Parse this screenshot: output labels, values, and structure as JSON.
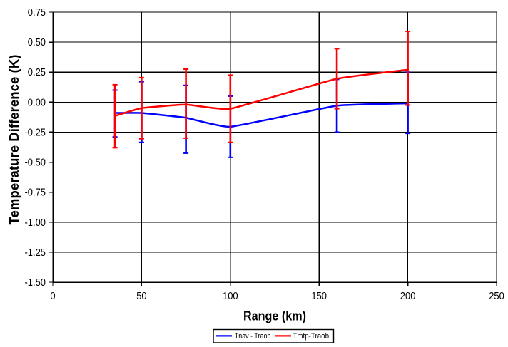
{
  "chart_data": {
    "type": "line",
    "title": "",
    "xlabel": "Range (km)",
    "ylabel": "Temperature Difference (K)",
    "xlim": [
      0,
      250
    ],
    "ylim": [
      -1.5,
      0.75
    ],
    "x_tick_labels": [
      "0",
      "50",
      "100",
      "150",
      "200",
      "250"
    ],
    "x_tick_values": [
      0,
      50,
      100,
      150,
      200,
      250
    ],
    "y_tick_labels": [
      "0.75",
      "0.50",
      "0.25",
      "0.00",
      "-0.25",
      "-0.50",
      "-0.75",
      "-1.00",
      "-1.25",
      "-1.50"
    ],
    "y_tick_values": [
      0.75,
      0.5,
      0.25,
      0.0,
      -0.25,
      -0.5,
      -0.75,
      -1.0,
      -1.25,
      -1.5
    ],
    "grid": true,
    "grid_color": "#000000",
    "axis_color": "#000000",
    "background_color": "#ffffff",
    "legend_position": "bottom",
    "x": [
      35,
      50,
      75,
      100,
      160,
      200
    ],
    "series": [
      {
        "name": "Tnav - Traob",
        "color": "#0000ff",
        "line_style": "smooth",
        "y": [
          -0.09,
          -0.09,
          -0.13,
          -0.205,
          -0.03,
          -0.01
        ],
        "error_bar_low": [
          -0.29,
          -0.335,
          -0.425,
          -0.46,
          -0.25,
          -0.26
        ],
        "error_bar_high": [
          0.1,
          0.17,
          0.14,
          0.05,
          0.19,
          0.25
        ]
      },
      {
        "name": "Tmtp-Traob",
        "color": "#ff0000",
        "line_style": "smooth",
        "y": [
          -0.115,
          -0.05,
          -0.02,
          -0.055,
          0.195,
          0.27
        ],
        "error_bar_low": [
          -0.38,
          -0.305,
          -0.3,
          -0.335,
          -0.055,
          -0.025
        ],
        "error_bar_high": [
          0.145,
          0.205,
          0.275,
          0.225,
          0.445,
          0.59
        ]
      }
    ]
  }
}
